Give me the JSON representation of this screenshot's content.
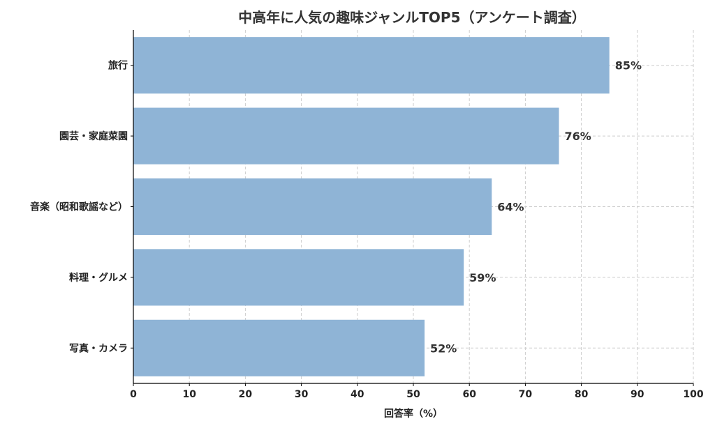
{
  "chart_data": {
    "type": "bar",
    "orientation": "horizontal",
    "title": "中高年に人気の趣味ジャンルTOP5（アンケート調査）",
    "xlabel": "回答率（%）",
    "ylabel": "",
    "categories": [
      "旅行",
      "園芸・家庭菜園",
      "音楽（昭和歌謡など）",
      "料理・グルメ",
      "写真・カメラ"
    ],
    "values": [
      85,
      76,
      64,
      59,
      52
    ],
    "value_labels": [
      "85%",
      "76%",
      "64%",
      "59%",
      "52%"
    ],
    "xlim": [
      0,
      100
    ],
    "xticks": [
      0,
      10,
      20,
      30,
      40,
      50,
      60,
      70,
      80,
      90,
      100
    ],
    "xtick_labels": [
      "0",
      "10",
      "20",
      "30",
      "40",
      "50",
      "60",
      "70",
      "80",
      "90",
      "100"
    ],
    "grid": true,
    "bar_color": "#8fb4d6"
  }
}
